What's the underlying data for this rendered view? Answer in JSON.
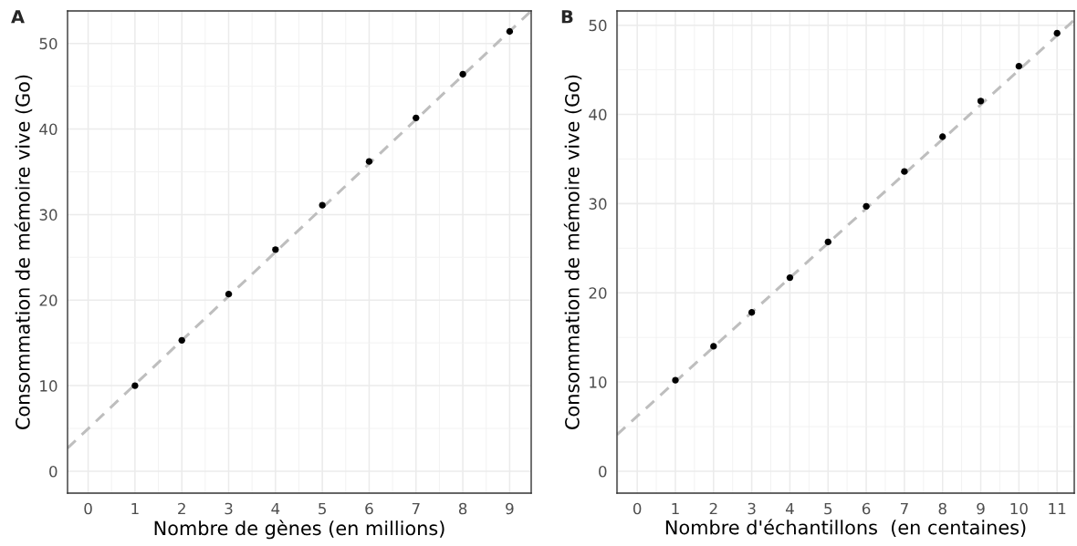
{
  "chart_data": [
    {
      "type": "scatter",
      "title": "A",
      "xlabel": "Nombre de gènes (en millions)",
      "ylabel": "Consommation de mémoire vive (Go)",
      "xlim": [
        -0.44,
        9.46
      ],
      "ylim": [
        -2.56,
        53.8
      ],
      "xticks": [
        0,
        1,
        2,
        3,
        4,
        5,
        6,
        7,
        8,
        9
      ],
      "yticks": [
        0,
        10,
        20,
        30,
        40,
        50
      ],
      "grid": true,
      "series": [
        {
          "marker": "circle",
          "color": "#000000",
          "x": [
            1,
            2,
            3,
            4,
            5,
            6,
            7,
            8,
            9
          ],
          "values": [
            10.0,
            15.3,
            20.7,
            25.9,
            31.1,
            36.2,
            41.3,
            46.4,
            51.4
          ]
        },
        {
          "type": "line",
          "color": "#bebebe",
          "line_style": "dashed",
          "x": [
            -0.44,
            9.46
          ],
          "values": [
            2.7,
            53.8
          ]
        }
      ]
    },
    {
      "type": "scatter",
      "title": "B",
      "xlabel": "Nombre d'échantillons  (en centaines)",
      "ylabel": "Consommation de mémoire vive (Go)",
      "xlim": [
        -0.53,
        11.45
      ],
      "ylim": [
        -2.46,
        51.6
      ],
      "xticks": [
        0,
        1,
        2,
        3,
        4,
        5,
        6,
        7,
        8,
        9,
        10,
        11
      ],
      "yticks": [
        0,
        10,
        20,
        30,
        40,
        50
      ],
      "grid": true,
      "series": [
        {
          "marker": "circle",
          "color": "#000000",
          "x": [
            1,
            2,
            3,
            4,
            5,
            6,
            7,
            8,
            9,
            10,
            11
          ],
          "values": [
            10.2,
            14.0,
            17.8,
            21.7,
            25.7,
            29.7,
            33.6,
            37.5,
            41.5,
            45.4,
            49.1
          ]
        },
        {
          "type": "line",
          "color": "#bebebe",
          "line_style": "dashed",
          "x": [
            -0.53,
            11.45
          ],
          "values": [
            4.1,
            50.6
          ]
        }
      ]
    }
  ]
}
